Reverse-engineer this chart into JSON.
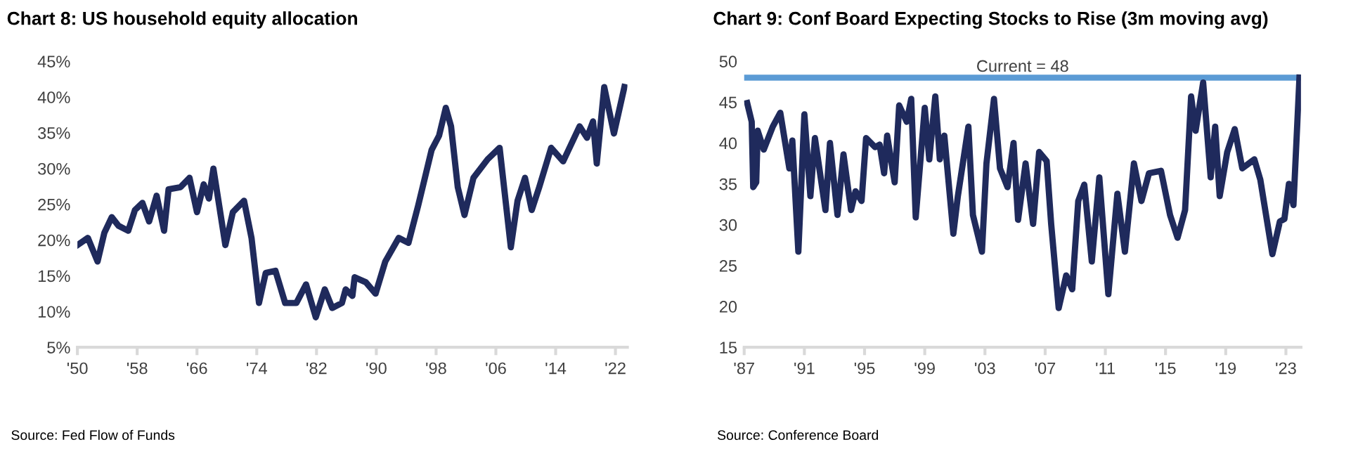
{
  "chart_data": [
    {
      "type": "line",
      "title": "Chart 8: US household equity allocation",
      "annotations": [
        "Source: Fed Flow of Funds"
      ],
      "grid": false,
      "legend": false,
      "marker": "none",
      "line_style": "solid",
      "xlim": [
        1950,
        2023.6
      ],
      "xticks": [
        {
          "value": 1950,
          "label": "'50"
        },
        {
          "value": 1958,
          "label": "'58"
        },
        {
          "value": 1966,
          "label": "'66"
        },
        {
          "value": 1974,
          "label": "'74"
        },
        {
          "value": 1982,
          "label": "'82"
        },
        {
          "value": 1990,
          "label": "'90"
        },
        {
          "value": 1998,
          "label": "'98"
        },
        {
          "value": 2006,
          "label": "'06"
        },
        {
          "value": 2014,
          "label": "'14"
        },
        {
          "value": 2022,
          "label": "'22"
        }
      ],
      "ylim": [
        5,
        45
      ],
      "yticks": [
        {
          "value": 5,
          "label": "5%"
        },
        {
          "value": 10,
          "label": "10%"
        },
        {
          "value": 15,
          "label": "15%"
        },
        {
          "value": 20,
          "label": "20%"
        },
        {
          "value": 25,
          "label": "25%"
        },
        {
          "value": 30,
          "label": "30%"
        },
        {
          "value": 35,
          "label": "35%"
        },
        {
          "value": 40,
          "label": "40%"
        },
        {
          "value": 45,
          "label": "45%"
        }
      ],
      "series": [
        {
          "color": "#1f2a5c",
          "x": [
            1950,
            1951.4,
            1952.7,
            1953.6,
            1954.6,
            1955.5,
            1956.8,
            1957.7,
            1958.7,
            1959.6,
            1960.6,
            1961.6,
            1962.2,
            1963.8,
            1965,
            1966,
            1966.9,
            1967.6,
            1968.2,
            1969.8,
            1970.8,
            1972.3,
            1973.3,
            1974.3,
            1975.2,
            1976.5,
            1977.8,
            1979.3,
            1980.6,
            1981.9,
            1983.1,
            1984.1,
            1985.4,
            1985.9,
            1986.8,
            1987.1,
            1988.6,
            1989.9,
            1991.2,
            1993,
            1994.3,
            1995.6,
            1997.4,
            1998.4,
            1999.3,
            2000,
            2000.9,
            2001.8,
            2003,
            2004.9,
            2006.5,
            2008,
            2008.9,
            2009.9,
            2010.8,
            2011.8,
            2013.4,
            2015,
            2017.2,
            2018.2,
            2019,
            2019.5,
            2020.5,
            2021.8,
            2023.2
          ],
          "values": [
            19.3,
            20.3,
            17.0,
            21,
            23.2,
            22,
            21.3,
            24.2,
            25.2,
            22.6,
            26.2,
            21.3,
            27.1,
            27.4,
            28.7,
            23.9,
            27.8,
            25.8,
            30,
            19.3,
            23.9,
            25.5,
            20.3,
            11.2,
            15.4,
            15.7,
            11.2,
            11.2,
            13.8,
            9.2,
            13.1,
            10.5,
            11.2,
            13.1,
            12.2,
            14.8,
            14.1,
            12.5,
            17,
            20.3,
            19.6,
            24.8,
            32.6,
            34.6,
            38.5,
            35.9,
            27.4,
            23.5,
            28.7,
            31.3,
            32.9,
            19,
            25.5,
            28.7,
            24.2,
            27.4,
            32.9,
            31,
            35.9,
            34.3,
            36.6,
            30.7,
            41.4,
            34.9,
            41.4
          ]
        }
      ]
    },
    {
      "type": "line",
      "title": "Chart 9: Conf Board Expecting Stocks to Rise (3m moving avg)",
      "annotations": [
        "Source: Conference Board"
      ],
      "grid": false,
      "legend": false,
      "marker": "none",
      "line_style": "solid",
      "xlim": [
        1987,
        2024
      ],
      "xticks": [
        {
          "value": 1987,
          "label": "'87"
        },
        {
          "value": 1991,
          "label": "'91"
        },
        {
          "value": 1995,
          "label": "'95"
        },
        {
          "value": 1999,
          "label": "'99"
        },
        {
          "value": 2003,
          "label": "'03"
        },
        {
          "value": 2007,
          "label": "'07"
        },
        {
          "value": 2011,
          "label": "'11"
        },
        {
          "value": 2015,
          "label": "'15"
        },
        {
          "value": 2019,
          "label": "'19"
        },
        {
          "value": 2023,
          "label": "'23"
        }
      ],
      "ylim": [
        15,
        50
      ],
      "yticks": [
        15,
        20,
        25,
        30,
        35,
        40,
        45,
        50
      ],
      "ref_lines": [
        {
          "axis": "y",
          "value": 48,
          "label": "Current = 48",
          "color": "#5b9bd5"
        }
      ],
      "series": [
        {
          "color": "#1f2a5c",
          "x": [
            1987.2,
            1987.5,
            1987.6,
            1987.8,
            1987.9,
            1988.3,
            1988.9,
            1989.4,
            1990.0,
            1990.2,
            1990.6,
            1991.0,
            1991.4,
            1991.7,
            1992.4,
            1992.7,
            1993.2,
            1993.6,
            1994.1,
            1994.4,
            1994.8,
            1995.1,
            1995.7,
            1996.0,
            1996.3,
            1996.5,
            1997.0,
            1997.3,
            1997.8,
            1998.1,
            1998.4,
            1999.0,
            1999.3,
            1999.7,
            2000.0,
            2000.3,
            2000.9,
            2001.2,
            2001.9,
            2002.2,
            2002.8,
            2003.1,
            2003.6,
            2004.0,
            2004.5,
            2004.9,
            2005.2,
            2005.7,
            2006.2,
            2006.6,
            2007.1,
            2007.4,
            2007.9,
            2008.4,
            2008.8,
            2009.2,
            2009.6,
            2010.1,
            2010.6,
            2011.2,
            2011.8,
            2012.3,
            2012.9,
            2013.4,
            2013.9,
            2014.7,
            2015.3,
            2015.8,
            2016.3,
            2016.7,
            2017.0,
            2017.5,
            2018.0,
            2018.3,
            2018.6,
            2019.1,
            2019.6,
            2020.1,
            2020.9,
            2021.3,
            2022.1,
            2022.6,
            2022.9,
            2023.2,
            2023.5,
            2023.9
          ],
          "values": [
            44.9,
            42.6,
            34.6,
            35.2,
            41.5,
            39.2,
            42.0,
            43.7,
            36.9,
            40.3,
            26.7,
            43.5,
            33.5,
            40.6,
            31.8,
            40.0,
            31.2,
            38.6,
            31.8,
            34.1,
            32.9,
            40.6,
            39.5,
            39.8,
            36.3,
            40.9,
            35.2,
            44.6,
            42.6,
            45.4,
            30.9,
            44.3,
            38.0,
            45.7,
            38.0,
            40.9,
            28.9,
            33.5,
            42.0,
            31.2,
            26.7,
            37.5,
            45.4,
            36.9,
            34.6,
            40.0,
            30.6,
            37.5,
            30.1,
            38.9,
            37.8,
            30.1,
            19.8,
            23.8,
            22.1,
            32.9,
            34.9,
            25.5,
            35.8,
            21.5,
            33.8,
            26.7,
            37.5,
            32.9,
            36.3,
            36.6,
            31.2,
            28.4,
            31.8,
            45.7,
            41.5,
            47.4,
            35.8,
            42.0,
            33.5,
            38.9,
            41.7,
            36.9,
            38.0,
            35.5,
            26.4,
            30.4,
            30.7,
            35.0,
            32.4,
            48.0
          ]
        }
      ]
    }
  ]
}
